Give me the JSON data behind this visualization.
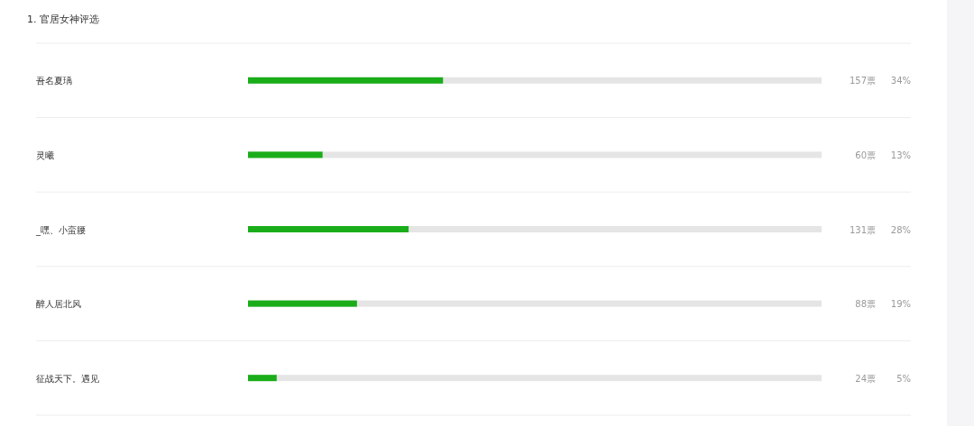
{
  "chart_data": {
    "type": "bar",
    "orientation": "horizontal",
    "title": "1. 官居女神评选",
    "categories": [
      "吾名夏瑀",
      "灵曦",
      "_嘿、小蛮腰",
      "醉人居北风",
      "征战天下。遇见"
    ],
    "values": [
      34,
      13,
      28,
      19,
      5
    ],
    "value_labels": [
      "34%",
      "13%",
      "28%",
      "19%",
      "5%"
    ],
    "annotations": [
      "157票",
      "60票",
      "131票",
      "88票",
      "24票"
    ],
    "color": "#1aad19",
    "xlim": [
      0,
      100
    ]
  }
}
